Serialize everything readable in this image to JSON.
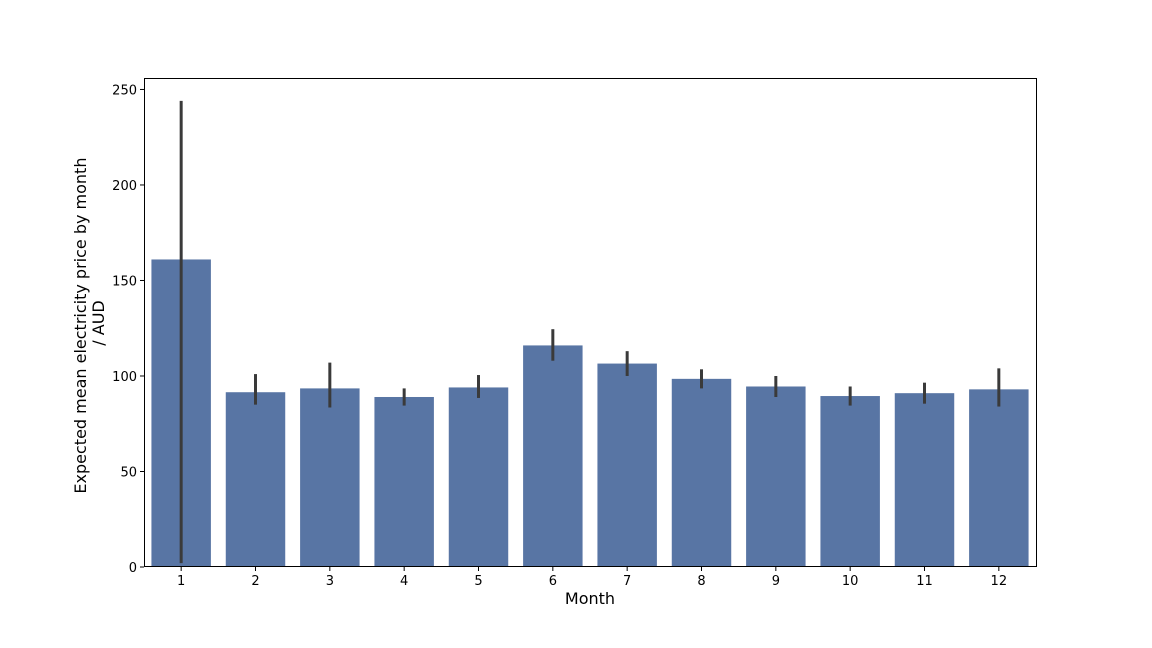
{
  "chart_data": {
    "type": "bar",
    "title": "",
    "xlabel": "Month",
    "ylabel_line1": "Expected mean electricity price by month",
    "ylabel_line2": "/ AUD",
    "categories": [
      "1",
      "2",
      "3",
      "4",
      "5",
      "6",
      "7",
      "8",
      "9",
      "10",
      "11",
      "12"
    ],
    "values": [
      161,
      91.5,
      93.5,
      89,
      94,
      116,
      106.5,
      98.5,
      94.5,
      89.5,
      91,
      93
    ],
    "error_low": [
      2,
      85,
      83.5,
      84.5,
      88.5,
      108,
      100,
      93.5,
      89,
      84.5,
      85.5,
      84
    ],
    "error_high": [
      244,
      101,
      107,
      93.5,
      100.5,
      124.5,
      113,
      103.5,
      100,
      94.5,
      96.5,
      104
    ],
    "ylim": [
      0,
      256
    ],
    "yticks": [
      0,
      50,
      100,
      150,
      200,
      250
    ],
    "grid": false,
    "colors": {
      "bar": "#5875a4",
      "errorbar": "#3a3a3a"
    }
  }
}
